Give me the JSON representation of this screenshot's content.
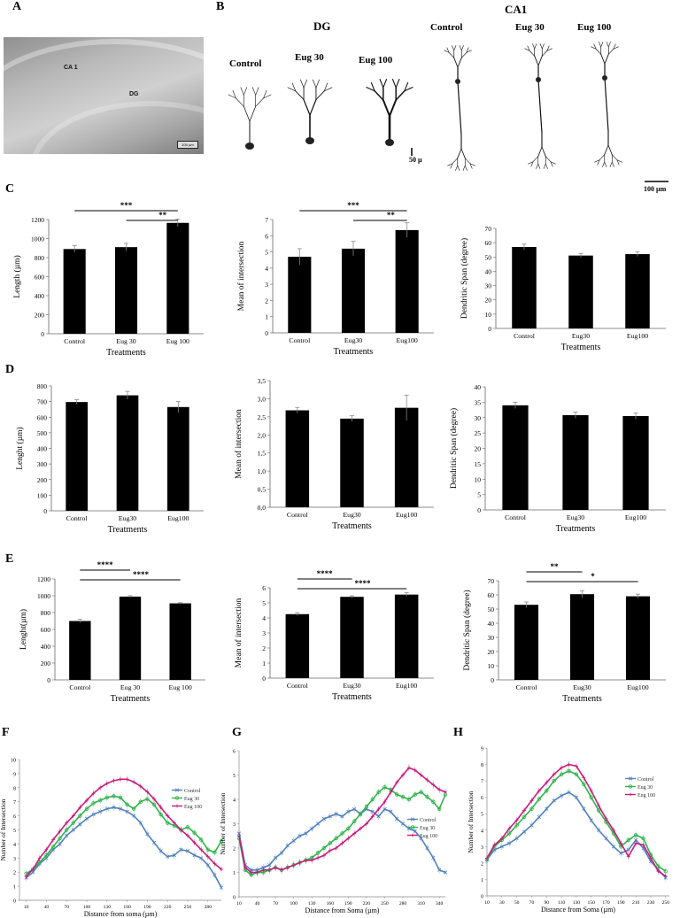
{
  "panels": {
    "A": "A",
    "B": "B",
    "C": "C",
    "D": "D",
    "E": "E",
    "F": "F",
    "G": "G",
    "H": "H"
  },
  "micrograph": {
    "ca1": "CA 1",
    "dg": "DG",
    "scale": "200 µm"
  },
  "section_b": {
    "dg_title": "DG",
    "ca1_title": "CA1",
    "dg_labels": [
      "Control",
      "Eug 30",
      "Eug 100"
    ],
    "ca1_labels": [
      "Control",
      "Eug 30",
      "Eug 100"
    ],
    "dg_scale": "50 µ",
    "ca1_scale": "100 µm"
  },
  "chart_data": [
    {
      "id": "C1",
      "type": "bar",
      "categories": [
        "Control",
        "Eug 30",
        "Eug 100"
      ],
      "values": [
        890,
        910,
        1165
      ],
      "errors": [
        35,
        40,
        40
      ],
      "xlabel": "Treatments",
      "ylabel": "Length (µm)",
      "ylim": [
        0,
        1200
      ],
      "yticks": [
        0,
        200,
        400,
        600,
        800,
        1000,
        1200
      ],
      "signif": [
        {
          "from": 0,
          "to": 2,
          "label": "***"
        },
        {
          "from": 1,
          "to": 2,
          "label": "**"
        }
      ]
    },
    {
      "id": "C2",
      "type": "bar",
      "categories": [
        "Control",
        "Eug30",
        "Eug100"
      ],
      "values": [
        4.7,
        5.2,
        6.35
      ],
      "errors": [
        0.5,
        0.45,
        0.45
      ],
      "xlabel": "Treatments",
      "ylabel": "Mean of intersection",
      "ylim": [
        0,
        7
      ],
      "yticks": [
        0,
        1,
        2,
        3,
        4,
        5,
        6,
        7
      ],
      "signif": [
        {
          "from": 0,
          "to": 2,
          "label": "***"
        },
        {
          "from": 1,
          "to": 2,
          "label": "**"
        }
      ]
    },
    {
      "id": "C3",
      "type": "bar",
      "categories": [
        "Control",
        "Eug30",
        "Eug100"
      ],
      "values": [
        57,
        51,
        52
      ],
      "errors": [
        2,
        1.5,
        1.5
      ],
      "xlabel": "Treatments",
      "ylabel": "Dendritic Span (degree)",
      "ylim": [
        0,
        70
      ],
      "yticks": [
        0,
        10,
        20,
        30,
        40,
        50,
        60,
        70
      ],
      "signif": []
    },
    {
      "id": "D1",
      "type": "bar",
      "categories": [
        "Control",
        "Eug30",
        "Eug100"
      ],
      "values": [
        697,
        740,
        665
      ],
      "errors": [
        15,
        25,
        35
      ],
      "xlabel": "Treatments",
      "ylabel": "Lenght (µm)",
      "ylim": [
        0,
        800
      ],
      "yticks": [
        0,
        100,
        200,
        300,
        400,
        500,
        600,
        700,
        800
      ],
      "signif": []
    },
    {
      "id": "D2",
      "type": "bar",
      "categories": [
        "Control",
        "Eug30",
        "Eug100"
      ],
      "values": [
        2.68,
        2.45,
        2.75
      ],
      "errors": [
        0.08,
        0.08,
        0.35
      ],
      "xlabel": "Treatments",
      "ylabel": "Mean of intersection",
      "ylim": [
        0,
        3.5
      ],
      "yticks": [
        "0,0",
        "0,5",
        "1,0",
        "1,5",
        "2,0",
        "2,5",
        "3,0",
        "3,5"
      ],
      "signif": []
    },
    {
      "id": "D3",
      "type": "bar",
      "categories": [
        "Control",
        "Eug30",
        "Eug100"
      ],
      "values": [
        34,
        30.8,
        30.5
      ],
      "errors": [
        1,
        1,
        1
      ],
      "xlabel": "Treatments",
      "ylabel": "Dendritic Span (degree)",
      "ylim": [
        0,
        40
      ],
      "yticks": [
        0,
        5,
        10,
        15,
        20,
        25,
        30,
        35,
        40
      ],
      "signif": []
    },
    {
      "id": "E1",
      "type": "bar",
      "categories": [
        "Control",
        "Eug 30",
        "Eug 100"
      ],
      "values": [
        700,
        990,
        910
      ],
      "errors": [
        20,
        12,
        8
      ],
      "xlabel": "Treatments",
      "ylabel": "Lenght(µm)",
      "ylim": [
        0,
        1200
      ],
      "yticks": [
        0,
        200,
        400,
        600,
        800,
        1000,
        1200
      ],
      "signif": [
        {
          "from": 0,
          "to": 1,
          "label": "****"
        },
        {
          "from": 0,
          "to": 2,
          "label": "****"
        }
      ]
    },
    {
      "id": "E2",
      "type": "bar",
      "categories": [
        "Control",
        "Eug30",
        "Eug100"
      ],
      "values": [
        4.25,
        5.4,
        5.55
      ],
      "errors": [
        0.1,
        0.07,
        0.12
      ],
      "xlabel": "Treatments",
      "ylabel": "Mean of intersection",
      "ylim": [
        0,
        6
      ],
      "yticks": [
        0,
        1,
        2,
        3,
        4,
        5,
        6
      ],
      "signif": [
        {
          "from": 0,
          "to": 1,
          "label": "****"
        },
        {
          "from": 0,
          "to": 2,
          "label": "****"
        }
      ]
    },
    {
      "id": "E3",
      "type": "bar",
      "categories": [
        "Control",
        "Eug30",
        "Eug100"
      ],
      "values": [
        53,
        60.5,
        59
      ],
      "errors": [
        2,
        2.5,
        1.5
      ],
      "xlabel": "Treatments",
      "ylabel": "Dendritic Span (degree)",
      "ylim": [
        0,
        70
      ],
      "yticks": [
        0,
        10,
        20,
        30,
        40,
        50,
        60,
        70
      ],
      "signif": [
        {
          "from": 0,
          "to": 1,
          "label": "**"
        },
        {
          "from": 0,
          "to": 2,
          "label": "*"
        }
      ]
    },
    {
      "id": "F",
      "type": "line",
      "xlabel": "Distance from soma (µm)",
      "ylabel": "Number of Intersection",
      "xlim": [
        0,
        300
      ],
      "ylim": [
        0,
        10
      ],
      "yticks": [
        0,
        1,
        2,
        3,
        4,
        5,
        6,
        7,
        8,
        9,
        10
      ],
      "xticks": [
        10,
        40,
        70,
        100,
        130,
        160,
        190,
        220,
        250,
        280
      ],
      "legend": "right",
      "x": [
        10,
        20,
        30,
        40,
        50,
        60,
        70,
        80,
        90,
        100,
        110,
        120,
        130,
        140,
        150,
        160,
        170,
        180,
        190,
        200,
        210,
        220,
        230,
        240,
        250,
        260,
        270,
        280,
        290,
        300
      ],
      "series": [
        {
          "name": "Control",
          "color": "#4f81bd",
          "marker": "x",
          "values": [
            1.6,
            2.0,
            2.6,
            3.0,
            3.6,
            4.0,
            4.6,
            5.0,
            5.4,
            5.8,
            6.1,
            6.3,
            6.5,
            6.6,
            6.5,
            6.3,
            6.0,
            5.5,
            4.7,
            4.1,
            3.5,
            3.1,
            3.2,
            3.6,
            3.5,
            3.2,
            3.0,
            2.5,
            1.8,
            0.9
          ]
        },
        {
          "name": "Eug 30",
          "color": "#2fb34a",
          "marker": "o",
          "values": [
            1.9,
            2.2,
            2.7,
            3.2,
            3.8,
            4.4,
            5.0,
            5.5,
            6.0,
            6.5,
            6.9,
            7.1,
            7.3,
            7.4,
            7.3,
            6.8,
            6.5,
            7.0,
            7.2,
            6.8,
            6.1,
            5.5,
            5.3,
            5.0,
            5.2,
            4.8,
            4.3,
            3.6,
            3.4,
            4.2
          ]
        },
        {
          "name": "Eug 100",
          "color": "#c81c7c",
          "marker": "+",
          "values": [
            1.7,
            2.2,
            3.0,
            3.6,
            4.3,
            4.9,
            5.5,
            6.0,
            6.6,
            7.1,
            7.6,
            8.0,
            8.3,
            8.5,
            8.6,
            8.6,
            8.4,
            8.1,
            7.7,
            7.2,
            6.6,
            6.0,
            5.5,
            5.0,
            4.6,
            4.1,
            3.6,
            3.1,
            2.6,
            2.2
          ]
        }
      ]
    },
    {
      "id": "G",
      "type": "line",
      "xlabel": "Distance from Soma (µm)",
      "ylabel": "Number of Intersection",
      "xlim": [
        10,
        350
      ],
      "ylim": [
        0,
        6
      ],
      "yticks": [
        0,
        1,
        2,
        3,
        4,
        5,
        6
      ],
      "xticks": [
        10,
        40,
        70,
        100,
        130,
        160,
        190,
        220,
        250,
        280,
        310,
        340
      ],
      "legend": "right",
      "x": [
        10,
        20,
        30,
        40,
        50,
        60,
        70,
        80,
        90,
        100,
        110,
        120,
        130,
        140,
        150,
        160,
        170,
        180,
        190,
        200,
        210,
        220,
        230,
        240,
        250,
        260,
        270,
        280,
        290,
        300,
        310,
        320,
        330,
        340,
        350
      ],
      "series": [
        {
          "name": "Control",
          "color": "#4f81bd",
          "marker": "x",
          "values": [
            2.6,
            1.3,
            1.1,
            1.1,
            1.2,
            1.3,
            1.6,
            1.8,
            2.1,
            2.3,
            2.5,
            2.6,
            2.8,
            3.0,
            3.2,
            3.3,
            3.4,
            3.3,
            3.5,
            3.6,
            3.4,
            3.6,
            3.5,
            3.3,
            3.6,
            3.5,
            3.2,
            3.0,
            2.8,
            2.7,
            2.4,
            2.0,
            1.6,
            1.1,
            1.0
          ]
        },
        {
          "name": "Eug 30",
          "color": "#2fb34a",
          "marker": "o",
          "values": [
            2.4,
            1.1,
            0.9,
            1.0,
            1.0,
            1.1,
            1.2,
            1.1,
            1.2,
            1.3,
            1.4,
            1.5,
            1.6,
            1.8,
            2.0,
            2.2,
            2.4,
            2.6,
            2.8,
            3.1,
            3.4,
            3.7,
            4.0,
            4.3,
            4.5,
            4.4,
            4.2,
            4.1,
            4.0,
            4.2,
            4.3,
            4.1,
            3.9,
            3.6,
            4.2
          ]
        },
        {
          "name": "Eug 100",
          "color": "#c81c7c",
          "marker": "+",
          "values": [
            2.5,
            1.2,
            1.0,
            1.0,
            1.1,
            1.1,
            1.2,
            1.1,
            1.2,
            1.3,
            1.4,
            1.5,
            1.5,
            1.6,
            1.7,
            1.9,
            2.0,
            2.2,
            2.4,
            2.6,
            2.8,
            3.0,
            3.3,
            3.6,
            3.9,
            4.3,
            4.7,
            5.0,
            5.3,
            5.2,
            5.0,
            4.8,
            4.6,
            4.4,
            4.3
          ]
        }
      ]
    },
    {
      "id": "H",
      "type": "line",
      "xlabel": "Distance from Soma (µm)",
      "ylabel": "Number of Intersection",
      "xlim": [
        10,
        255
      ],
      "ylim": [
        0,
        9
      ],
      "yticks": [
        0,
        1,
        2,
        3,
        4,
        5,
        6,
        7,
        8,
        9
      ],
      "xticks": [
        10,
        30,
        50,
        70,
        90,
        110,
        130,
        150,
        170,
        190,
        210,
        230,
        250
      ],
      "legend": "top",
      "x": [
        10,
        20,
        30,
        40,
        50,
        60,
        70,
        80,
        90,
        100,
        110,
        120,
        130,
        140,
        150,
        160,
        170,
        180,
        190,
        200,
        210,
        220,
        230,
        240,
        250
      ],
      "series": [
        {
          "name": "Control",
          "color": "#4f81bd",
          "marker": "x",
          "values": [
            2.2,
            2.8,
            3.0,
            3.2,
            3.5,
            3.9,
            4.3,
            4.8,
            5.3,
            5.8,
            6.1,
            6.3,
            6.0,
            5.3,
            4.6,
            4.0,
            3.5,
            3.0,
            2.6,
            2.8,
            3.4,
            2.9,
            2.1,
            1.6,
            1.1
          ]
        },
        {
          "name": "Eug 30",
          "color": "#2fb34a",
          "marker": "o",
          "values": [
            2.2,
            3.0,
            3.4,
            3.8,
            4.3,
            4.8,
            5.3,
            5.9,
            6.4,
            7.0,
            7.4,
            7.6,
            7.4,
            6.8,
            6.0,
            5.2,
            4.5,
            3.8,
            3.0,
            3.4,
            3.7,
            3.5,
            2.5,
            1.8,
            1.5
          ]
        },
        {
          "name": "Eug 100",
          "color": "#c81c7c",
          "marker": "+",
          "values": [
            2.3,
            3.1,
            3.5,
            4.1,
            4.6,
            5.2,
            5.8,
            6.4,
            6.9,
            7.4,
            7.8,
            8.0,
            7.9,
            7.2,
            6.4,
            5.5,
            4.7,
            4.0,
            3.2,
            2.4,
            3.2,
            3.1,
            2.3,
            1.5,
            1.2
          ]
        }
      ]
    }
  ]
}
